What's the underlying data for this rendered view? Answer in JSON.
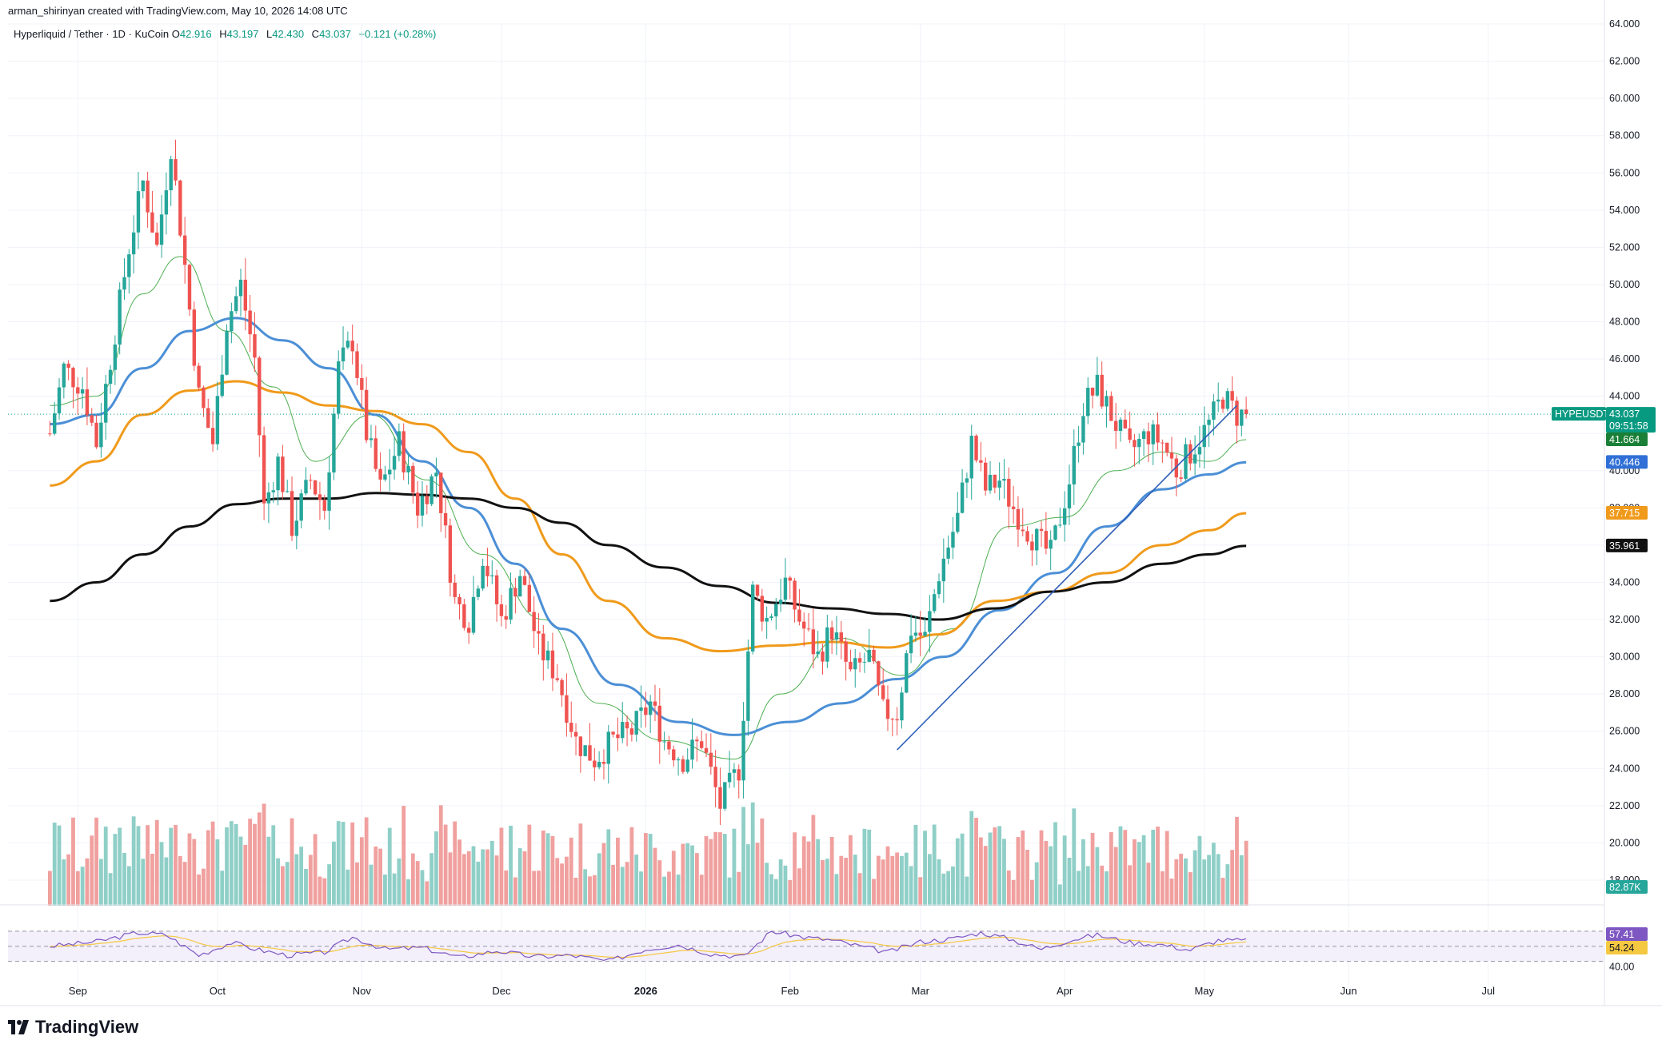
{
  "header": {
    "credit": "arman_shirinyan created with TradingView.com, May 10, 2026 14:08 UTC",
    "symbol": "Hyperliquid / Tether · 1D · KuCoin",
    "ohlc": [
      {
        "k": "O",
        "v": "42.916"
      },
      {
        "k": "H",
        "v": "43.197"
      },
      {
        "k": "L",
        "v": "42.430"
      },
      {
        "k": "C",
        "v": "43.037"
      },
      {
        "k": "",
        "v": "+0.121 (+0.28%)"
      }
    ]
  },
  "branding": {
    "logo_text": "TradingView"
  },
  "colors": {
    "up": "#26a69a",
    "down": "#ef5350",
    "vol_up": "#8fcfc7",
    "vol_down": "#f0a09e",
    "ma_fast": "#4caf50",
    "ma_blue": "#4b8fd6",
    "ma_orange": "#f09a1b",
    "ma_black": "#111111",
    "trendline": "#2f5fb8",
    "rsi": "#7e57c2",
    "rsi_ma": "#f5c842"
  },
  "chart_data": {
    "type": "candlestick",
    "title": "Hyperliquid / Tether · 1D · KuCoin",
    "ylim": [
      18,
      64
    ],
    "y_ticks": [
      "64.000",
      "62.000",
      "60.000",
      "58.000",
      "56.000",
      "54.000",
      "52.000",
      "50.000",
      "48.000",
      "46.000",
      "44.000",
      "42.000",
      "40.000",
      "38.000",
      "36.000",
      "34.000",
      "32.000",
      "30.000",
      "28.000",
      "26.000",
      "24.000",
      "22.000",
      "20.000",
      "18.000"
    ],
    "x_ticks": [
      "Sep",
      "Oct",
      "Nov",
      "Dec",
      "2026",
      "Feb",
      "Mar",
      "Apr",
      "May",
      "Jun",
      "Jul"
    ],
    "price_keys": [
      [
        "2025-08-26",
        42.0
      ],
      [
        "2025-08-29",
        45.5
      ],
      [
        "2025-09-02",
        44.5
      ],
      [
        "2025-09-05",
        41.5
      ],
      [
        "2025-09-09",
        47.5
      ],
      [
        "2025-09-12",
        52.0
      ],
      [
        "2025-09-15",
        55.5
      ],
      [
        "2025-09-18",
        52.0
      ],
      [
        "2025-09-21",
        57.5
      ],
      [
        "2025-09-24",
        51.0
      ],
      [
        "2025-09-27",
        44.0
      ],
      [
        "2025-09-30",
        41.5
      ],
      [
        "2025-10-03",
        48.0
      ],
      [
        "2025-10-06",
        50.0
      ],
      [
        "2025-10-09",
        46.0
      ],
      [
        "2025-10-11",
        38.0
      ],
      [
        "2025-10-14",
        40.5
      ],
      [
        "2025-10-17",
        37.0
      ],
      [
        "2025-10-21",
        39.5
      ],
      [
        "2025-10-24",
        38.0
      ],
      [
        "2025-10-27",
        45.5
      ],
      [
        "2025-10-30",
        47.0
      ],
      [
        "2025-11-02",
        42.0
      ],
      [
        "2025-11-05",
        39.0
      ],
      [
        "2025-11-09",
        41.5
      ],
      [
        "2025-11-13",
        38.0
      ],
      [
        "2025-11-17",
        40.0
      ],
      [
        "2025-11-21",
        33.0
      ],
      [
        "2025-11-24",
        32.0
      ],
      [
        "2025-11-27",
        35.5
      ],
      [
        "2025-12-01",
        32.0
      ],
      [
        "2025-12-05",
        34.5
      ],
      [
        "2025-12-09",
        30.5
      ],
      [
        "2025-12-13",
        29.0
      ],
      [
        "2025-12-17",
        25.5
      ],
      [
        "2025-12-21",
        24.5
      ],
      [
        "2025-12-25",
        25.5
      ],
      [
        "2025-12-29",
        26.0
      ],
      [
        "2026-01-02",
        27.5
      ],
      [
        "2026-01-05",
        25.5
      ],
      [
        "2026-01-09",
        24.5
      ],
      [
        "2026-01-13",
        25.5
      ],
      [
        "2026-01-17",
        22.0
      ],
      [
        "2026-01-21",
        24.0
      ],
      [
        "2026-01-24",
        33.5
      ],
      [
        "2026-01-27",
        32.0
      ],
      [
        "2026-01-31",
        34.0
      ],
      [
        "2026-02-03",
        32.0
      ],
      [
        "2026-02-07",
        30.0
      ],
      [
        "2026-02-10",
        31.5
      ],
      [
        "2026-02-14",
        29.0
      ],
      [
        "2026-02-18",
        30.0
      ],
      [
        "2026-02-21",
        27.0
      ],
      [
        "2026-02-24",
        27.0
      ],
      [
        "2026-02-27",
        31.5
      ],
      [
        "2026-03-02",
        31.0
      ],
      [
        "2026-03-05",
        34.5
      ],
      [
        "2026-03-09",
        37.5
      ],
      [
        "2026-03-12",
        41.5
      ],
      [
        "2026-03-15",
        39.0
      ],
      [
        "2026-03-18",
        39.5
      ],
      [
        "2026-03-21",
        38.0
      ],
      [
        "2026-03-25",
        36.5
      ],
      [
        "2026-03-29",
        35.5
      ],
      [
        "2026-04-02",
        39.5
      ],
      [
        "2026-04-05",
        43.5
      ],
      [
        "2026-04-08",
        44.5
      ],
      [
        "2026-04-12",
        42.5
      ],
      [
        "2026-04-15",
        41.0
      ],
      [
        "2026-04-19",
        42.0
      ],
      [
        "2026-04-22",
        41.5
      ],
      [
        "2026-04-25",
        40.0
      ],
      [
        "2026-04-28",
        41.0
      ],
      [
        "2026-05-02",
        42.5
      ],
      [
        "2026-05-05",
        44.0
      ],
      [
        "2026-05-08",
        43.0
      ],
      [
        "2026-05-10",
        43.037
      ]
    ],
    "moving_averages": [
      {
        "color_key": "ma_fast",
        "width": 1,
        "points": [
          [
            "2025-08-26",
            43.5
          ],
          [
            "2025-09-05",
            44.0
          ],
          [
            "2025-09-15",
            49.5
          ],
          [
            "2025-09-23",
            51.5
          ],
          [
            "2025-10-03",
            47.5
          ],
          [
            "2025-10-13",
            44.5
          ],
          [
            "2025-10-22",
            40.5
          ],
          [
            "2025-11-03",
            43.0
          ],
          [
            "2025-11-15",
            39.5
          ],
          [
            "2025-11-27",
            35.5
          ],
          [
            "2025-12-10",
            32.0
          ],
          [
            "2025-12-22",
            27.5
          ],
          [
            "2026-01-05",
            25.5
          ],
          [
            "2026-01-20",
            24.5
          ],
          [
            "2026-01-30",
            28.0
          ],
          [
            "2026-02-12",
            31.0
          ],
          [
            "2026-02-25",
            29.0
          ],
          [
            "2026-03-08",
            31.5
          ],
          [
            "2026-03-20",
            37.0
          ],
          [
            "2026-04-01",
            37.5
          ],
          [
            "2026-04-12",
            40.0
          ],
          [
            "2026-04-22",
            41.0
          ],
          [
            "2026-05-02",
            40.5
          ],
          [
            "2026-05-10",
            41.664
          ]
        ]
      },
      {
        "color_key": "ma_blue",
        "width": 3,
        "points": [
          [
            "2025-08-26",
            42.5
          ],
          [
            "2025-09-05",
            43.0
          ],
          [
            "2025-09-15",
            45.5
          ],
          [
            "2025-09-25",
            47.5
          ],
          [
            "2025-10-05",
            48.2
          ],
          [
            "2025-10-15",
            47.0
          ],
          [
            "2025-10-25",
            45.5
          ],
          [
            "2025-11-04",
            43.0
          ],
          [
            "2025-11-14",
            40.5
          ],
          [
            "2025-11-24",
            38.0
          ],
          [
            "2025-12-04",
            35.0
          ],
          [
            "2025-12-14",
            31.5
          ],
          [
            "2025-12-26",
            28.5
          ],
          [
            "2026-01-08",
            26.5
          ],
          [
            "2026-01-20",
            25.8
          ],
          [
            "2026-02-01",
            26.5
          ],
          [
            "2026-02-12",
            27.5
          ],
          [
            "2026-02-24",
            28.8
          ],
          [
            "2026-03-06",
            30.0
          ],
          [
            "2026-03-18",
            32.5
          ],
          [
            "2026-03-30",
            34.5
          ],
          [
            "2026-04-10",
            37.0
          ],
          [
            "2026-04-22",
            39.0
          ],
          [
            "2026-05-02",
            39.8
          ],
          [
            "2026-05-10",
            40.446
          ]
        ]
      },
      {
        "color_key": "ma_orange",
        "width": 3,
        "points": [
          [
            "2025-08-26",
            39.2
          ],
          [
            "2025-09-05",
            40.5
          ],
          [
            "2025-09-15",
            43.0
          ],
          [
            "2025-09-25",
            44.3
          ],
          [
            "2025-10-05",
            44.8
          ],
          [
            "2025-10-15",
            44.2
          ],
          [
            "2025-10-25",
            43.5
          ],
          [
            "2025-11-04",
            43.2
          ],
          [
            "2025-11-14",
            42.5
          ],
          [
            "2025-11-24",
            41.0
          ],
          [
            "2025-12-04",
            38.5
          ],
          [
            "2025-12-14",
            35.5
          ],
          [
            "2025-12-24",
            33.0
          ],
          [
            "2026-01-05",
            31.0
          ],
          [
            "2026-01-17",
            30.3
          ],
          [
            "2026-01-29",
            30.6
          ],
          [
            "2026-02-10",
            30.8
          ],
          [
            "2026-02-22",
            30.5
          ],
          [
            "2026-03-05",
            31.2
          ],
          [
            "2026-03-17",
            33.0
          ],
          [
            "2026-03-29",
            33.5
          ],
          [
            "2026-04-10",
            34.5
          ],
          [
            "2026-04-22",
            36.0
          ],
          [
            "2026-05-02",
            36.8
          ],
          [
            "2026-05-10",
            37.715
          ]
        ]
      },
      {
        "color_key": "ma_black",
        "width": 3,
        "points": [
          [
            "2025-08-26",
            33.0
          ],
          [
            "2025-09-05",
            34.0
          ],
          [
            "2025-09-15",
            35.5
          ],
          [
            "2025-09-25",
            37.0
          ],
          [
            "2025-10-05",
            38.2
          ],
          [
            "2025-10-15",
            38.5
          ],
          [
            "2025-10-25",
            38.5
          ],
          [
            "2025-11-04",
            38.8
          ],
          [
            "2025-11-14",
            38.7
          ],
          [
            "2025-11-24",
            38.5
          ],
          [
            "2025-12-04",
            38.0
          ],
          [
            "2025-12-14",
            37.2
          ],
          [
            "2025-12-24",
            36.0
          ],
          [
            "2026-01-05",
            34.8
          ],
          [
            "2026-01-17",
            33.8
          ],
          [
            "2026-01-29",
            32.9
          ],
          [
            "2026-02-10",
            32.6
          ],
          [
            "2026-02-22",
            32.3
          ],
          [
            "2026-03-05",
            32.0
          ],
          [
            "2026-03-17",
            32.6
          ],
          [
            "2026-03-29",
            33.5
          ],
          [
            "2026-04-10",
            34.0
          ],
          [
            "2026-04-22",
            35.0
          ],
          [
            "2026-05-02",
            35.5
          ],
          [
            "2026-05-10",
            35.961
          ]
        ]
      }
    ],
    "trendline": [
      [
        "2026-02-24",
        25.0
      ],
      [
        "2026-05-08",
        43.5
      ]
    ],
    "last_price_line": 43.037,
    "price_tags": [
      {
        "label": "HYPEUSDT",
        "value": "43.037",
        "sub": "09:51:58",
        "price": 43.037,
        "color": "#089981"
      },
      {
        "label": "",
        "value": "41.664",
        "price": 41.664,
        "color": "#1a7f37"
      },
      {
        "label": "",
        "value": "40.446",
        "price": 40.446,
        "color": "#2f6fd6"
      },
      {
        "label": "",
        "value": "37.715",
        "price": 37.715,
        "color": "#f09a1b"
      },
      {
        "label": "",
        "value": "35.961",
        "price": 35.961,
        "color": "#111111"
      }
    ],
    "volume_tag": {
      "value": "82.87K",
      "color": "#26a69a"
    },
    "rsi": {
      "levels": [
        70,
        50,
        30
      ],
      "level_label": "40.00",
      "value": "57.41",
      "ma_value": "54.24",
      "keys": [
        [
          "2025-08-26",
          50
        ],
        [
          "2025-09-05",
          56
        ],
        [
          "2025-09-14",
          68
        ],
        [
          "2025-09-20",
          65
        ],
        [
          "2025-09-27",
          38
        ],
        [
          "2025-10-04",
          55
        ],
        [
          "2025-10-10",
          45
        ],
        [
          "2025-10-16",
          38
        ],
        [
          "2025-10-24",
          42
        ],
        [
          "2025-10-30",
          62
        ],
        [
          "2025-11-06",
          46
        ],
        [
          "2025-11-14",
          48
        ],
        [
          "2025-11-22",
          35
        ],
        [
          "2025-11-30",
          44
        ],
        [
          "2025-12-08",
          36
        ],
        [
          "2025-12-16",
          38
        ],
        [
          "2025-12-24",
          30
        ],
        [
          "2026-01-01",
          46
        ],
        [
          "2026-01-08",
          52
        ],
        [
          "2026-01-15",
          40
        ],
        [
          "2026-01-22",
          36
        ],
        [
          "2026-01-28",
          70
        ],
        [
          "2026-02-04",
          62
        ],
        [
          "2026-02-10",
          58
        ],
        [
          "2026-02-16",
          50
        ],
        [
          "2026-02-22",
          42
        ],
        [
          "2026-03-01",
          56
        ],
        [
          "2026-03-08",
          60
        ],
        [
          "2026-03-14",
          68
        ],
        [
          "2026-03-20",
          60
        ],
        [
          "2026-03-27",
          46
        ],
        [
          "2026-04-02",
          58
        ],
        [
          "2026-04-08",
          65
        ],
        [
          "2026-04-15",
          55
        ],
        [
          "2026-04-22",
          52
        ],
        [
          "2026-04-28",
          45
        ],
        [
          "2026-05-04",
          58
        ],
        [
          "2026-05-10",
          57.41
        ]
      ]
    }
  }
}
